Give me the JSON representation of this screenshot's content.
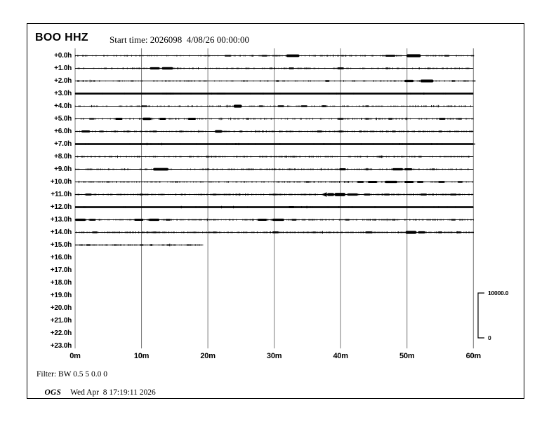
{
  "header": {
    "station_title": "BOO HHZ",
    "start_time_label": "Start time: 2026098  4/08/26 00:00:00"
  },
  "footer": {
    "filter_line": "Filter: BW 0.5 5 0.0 0",
    "agency": "OGS",
    "timestamp": "Wed Apr  8 17:19:11 2026"
  },
  "scale_bar": {
    "max_label": "10000.0",
    "min_label": "0"
  },
  "colors": {
    "trace": "#000000",
    "gridline": "#7b7b7b",
    "border": "#000000",
    "background": "#ffffff"
  },
  "chart_data": {
    "type": "line",
    "subtype": "helicorder-seismogram",
    "title": "BOO HHZ",
    "station": "BOO",
    "channel": "HHZ",
    "start_time": "2026098 4/08/26 00:00:00",
    "minutes_per_row": 60,
    "grid": true,
    "amplitude_scale": {
      "max": 10000.0,
      "min": 0
    },
    "x_ticks": [
      {
        "minute": 0,
        "label": "0m"
      },
      {
        "minute": 10,
        "label": "10m"
      },
      {
        "minute": 20,
        "label": "20m"
      },
      {
        "minute": 30,
        "label": "30m"
      },
      {
        "minute": 40,
        "label": "40m"
      },
      {
        "minute": 50,
        "label": "50m"
      },
      {
        "minute": 60,
        "label": "60m"
      }
    ],
    "rows": [
      {
        "label": "+0.0h",
        "trace": true,
        "end_min": 60,
        "weight": 1,
        "noise": 0.45,
        "bursts": [
          [
            23,
            1,
            1
          ],
          [
            28.5,
            0.8,
            1
          ],
          [
            32.8,
            2,
            2.5
          ],
          [
            47.5,
            1.5,
            1.5
          ],
          [
            51,
            2.2,
            3
          ],
          [
            56,
            0.8,
            1
          ]
        ]
      },
      {
        "label": "+1.0h",
        "trace": true,
        "end_min": 60,
        "weight": 1,
        "noise": 0.4,
        "bursts": [
          [
            12,
            1.5,
            2
          ],
          [
            13.9,
            1.7,
            2.2
          ],
          [
            32.6,
            0.8,
            1.2
          ],
          [
            40,
            1,
            1.5
          ],
          [
            47,
            0.5,
            1
          ]
        ]
      },
      {
        "label": "+2.0h",
        "trace": true,
        "end_min": 60,
        "weight": 1,
        "noise": 0.35,
        "bursts": [
          [
            30.5,
            0.5,
            1
          ],
          [
            38,
            0.7,
            1.2
          ],
          [
            50.3,
            1.4,
            2
          ],
          [
            53,
            2,
            2.6
          ],
          [
            57,
            0.6,
            1
          ]
        ]
      },
      {
        "label": "+3.0h",
        "trace": true,
        "end_min": 60,
        "weight": 3,
        "noise": 0.6,
        "bursts": [
          [
            14,
            2,
            1
          ],
          [
            22,
            1.5,
            1
          ]
        ]
      },
      {
        "label": "+4.0h",
        "trace": true,
        "end_min": 60,
        "weight": 1,
        "noise": 0.45,
        "bursts": [
          [
            10.5,
            0.8,
            1
          ],
          [
            24.5,
            1.3,
            3
          ],
          [
            28,
            0.7,
            1
          ],
          [
            31,
            1,
            1.2
          ],
          [
            34.5,
            1,
            1.2
          ],
          [
            37.5,
            0.8,
            1.2
          ],
          [
            44,
            0.5,
            1
          ]
        ]
      },
      {
        "label": "+5.0h",
        "trace": true,
        "end_min": 60,
        "weight": 1,
        "noise": 0.45,
        "bursts": [
          [
            2.5,
            0.8,
            1
          ],
          [
            6.6,
            1.1,
            1.8
          ],
          [
            10.8,
            1.3,
            2.2
          ],
          [
            13.2,
            1,
            1.8
          ],
          [
            17.6,
            1.2,
            1.8
          ],
          [
            26,
            0.5,
            1
          ],
          [
            40,
            0.9,
            1.2
          ],
          [
            44,
            0.6,
            1
          ],
          [
            47.5,
            0.7,
            1.2
          ],
          [
            55.3,
            1,
            1.5
          ],
          [
            58,
            0.6,
            1
          ]
        ]
      },
      {
        "label": "+6.0h",
        "trace": true,
        "end_min": 60,
        "weight": 1,
        "noise": 0.6,
        "bursts": [
          [
            1.6,
            1.3,
            1.6
          ],
          [
            4,
            0.6,
            1
          ],
          [
            8,
            0.5,
            1
          ],
          [
            12,
            0.7,
            1
          ],
          [
            16,
            0.5,
            1
          ],
          [
            21.6,
            1.1,
            2.4
          ],
          [
            25,
            0.5,
            1
          ],
          [
            36.8,
            0.8,
            1.2
          ],
          [
            40,
            0.7,
            1.2
          ],
          [
            43,
            0.5,
            1
          ],
          [
            48,
            0.6,
            1
          ],
          [
            55,
            0.5,
            1
          ]
        ]
      },
      {
        "label": "+7.0h",
        "trace": true,
        "end_min": 60,
        "weight": 3,
        "noise": 0.6,
        "bursts": []
      },
      {
        "label": "+8.0h",
        "trace": true,
        "end_min": 60,
        "weight": 1,
        "noise": 0.5,
        "bursts": [
          [
            20,
            0.5,
            0.8
          ],
          [
            33,
            0.5,
            0.8
          ],
          [
            46,
            0.6,
            1
          ],
          [
            52,
            0.5,
            0.8
          ]
        ]
      },
      {
        "label": "+9.0h",
        "trace": true,
        "end_min": 60,
        "weight": 1,
        "noise": 0.5,
        "bursts": [
          [
            12.9,
            2.3,
            2.4
          ],
          [
            20,
            0.5,
            0.8
          ],
          [
            40.3,
            1,
            1.6
          ],
          [
            44,
            0.6,
            1
          ],
          [
            48.6,
            1.6,
            2
          ],
          [
            50.2,
            1.2,
            1.6
          ],
          [
            54,
            0.5,
            1
          ]
        ]
      },
      {
        "label": "+10.0h",
        "trace": true,
        "end_min": 60,
        "weight": 1,
        "noise": 0.55,
        "bursts": [
          [
            5,
            0.5,
            0.8
          ],
          [
            35,
            0.6,
            1
          ],
          [
            43,
            1,
            1.4
          ],
          [
            44.8,
            1.4,
            1.8
          ],
          [
            47.6,
            1.9,
            1.9
          ],
          [
            50.3,
            1.4,
            1.8
          ],
          [
            52,
            1,
            1.4
          ],
          [
            55.2,
            1,
            1.4
          ],
          [
            58,
            0.8,
            1.2
          ]
        ]
      },
      {
        "label": "+11.0h",
        "trace": true,
        "end_min": 60,
        "weight": 1,
        "noise": 0.9,
        "bursts": [
          [
            2,
            1,
            1.4
          ],
          [
            10,
            0.6,
            1
          ],
          [
            21,
            0.6,
            1
          ],
          [
            30,
            0.6,
            1
          ],
          [
            38.5,
            1.1,
            3
          ],
          [
            39.9,
            1.7,
            3.4
          ],
          [
            41.8,
            1.6,
            2
          ],
          [
            44,
            1,
            1.5
          ],
          [
            47,
            0.8,
            1.3
          ],
          [
            52.5,
            1,
            1.4
          ],
          [
            57,
            1,
            1.3
          ]
        ]
      },
      {
        "label": "+12.0h",
        "trace": true,
        "end_min": 60,
        "weight": 3,
        "noise": 0.5,
        "bursts": [
          [
            32.6,
            0.9,
            1.6
          ]
        ]
      },
      {
        "label": "+13.0h",
        "trace": true,
        "end_min": 60,
        "weight": 1,
        "noise": 0.7,
        "bursts": [
          [
            0.8,
            1.6,
            2
          ],
          [
            2.6,
            1,
            1.5
          ],
          [
            9.6,
            1.4,
            1.6
          ],
          [
            11.9,
            1.6,
            2
          ],
          [
            14,
            0.8,
            1.2
          ],
          [
            28.2,
            1.4,
            1.6
          ],
          [
            30.6,
            1.8,
            2
          ],
          [
            33,
            0.8,
            1.2
          ],
          [
            41,
            0.7,
            1
          ],
          [
            48,
            0.5,
            0.8
          ],
          [
            57,
            0.7,
            1
          ]
        ]
      },
      {
        "label": "+14.0h",
        "trace": true,
        "end_min": 60,
        "weight": 1,
        "noise": 0.9,
        "bursts": [
          [
            3,
            0.8,
            1.2
          ],
          [
            12,
            0.6,
            1
          ],
          [
            21,
            0.6,
            1
          ],
          [
            30.2,
            1,
            1.5
          ],
          [
            36,
            0.6,
            1
          ],
          [
            44.2,
            1,
            1.5
          ],
          [
            50.6,
            1.7,
            3
          ],
          [
            52.2,
            1.1,
            2
          ],
          [
            55,
            0.7,
            1.2
          ],
          [
            57.8,
            0.8,
            1.2
          ]
        ]
      },
      {
        "label": "+15.0h",
        "trace": true,
        "end_min": 19.3,
        "weight": 1,
        "noise": 0.6,
        "bursts": [
          [
            2,
            0.7,
            1
          ],
          [
            6,
            0.5,
            0.8
          ],
          [
            10,
            0.6,
            0.8
          ],
          [
            14,
            0.5,
            0.8
          ],
          [
            17,
            0.5,
            0.8
          ]
        ]
      },
      {
        "label": "+16.0h",
        "trace": false
      },
      {
        "label": "+17.0h",
        "trace": false
      },
      {
        "label": "+18.0h",
        "trace": false
      },
      {
        "label": "+19.0h",
        "trace": false
      },
      {
        "label": "+20.0h",
        "trace": false
      },
      {
        "label": "+21.0h",
        "trace": false
      },
      {
        "label": "+22.0h",
        "trace": false
      },
      {
        "label": "+23.0h",
        "trace": false
      }
    ],
    "markers": [
      {
        "row_index": 11,
        "minute": 37.7,
        "type": "left-arrow"
      }
    ]
  }
}
